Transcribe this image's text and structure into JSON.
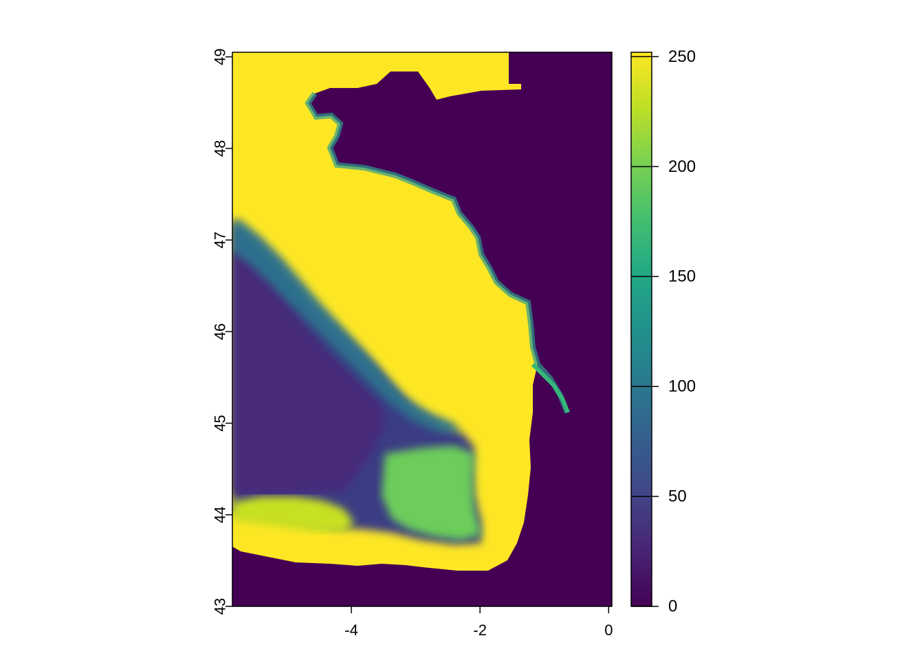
{
  "chart_data": {
    "type": "heatmap",
    "title": "",
    "xlabel": "",
    "ylabel": "",
    "xlim": [
      -5.85,
      0.05
    ],
    "ylim": [
      43.0,
      49.05
    ],
    "x_ticks": [
      {
        "value": -4,
        "label": "-4"
      },
      {
        "value": -2,
        "label": "-2"
      },
      {
        "value": 0,
        "label": "0"
      }
    ],
    "y_ticks": [
      {
        "value": 43,
        "label": "43"
      },
      {
        "value": 44,
        "label": "44"
      },
      {
        "value": 45,
        "label": "45"
      },
      {
        "value": 46,
        "label": "46"
      },
      {
        "value": 47,
        "label": "47"
      },
      {
        "value": 48,
        "label": "48"
      },
      {
        "value": 49,
        "label": "49"
      }
    ],
    "colorbar": {
      "range": [
        0,
        252
      ],
      "palette": "viridis",
      "ticks": [
        {
          "value": 0,
          "label": "0"
        },
        {
          "value": 50,
          "label": "50"
        },
        {
          "value": 100,
          "label": "100"
        },
        {
          "value": 150,
          "label": "150"
        },
        {
          "value": 200,
          "label": "200"
        },
        {
          "value": 250,
          "label": "250"
        }
      ]
    },
    "grid": false,
    "colors": {
      "low": "#440154",
      "mid": "#21918c",
      "high": "#fde725"
    }
  }
}
